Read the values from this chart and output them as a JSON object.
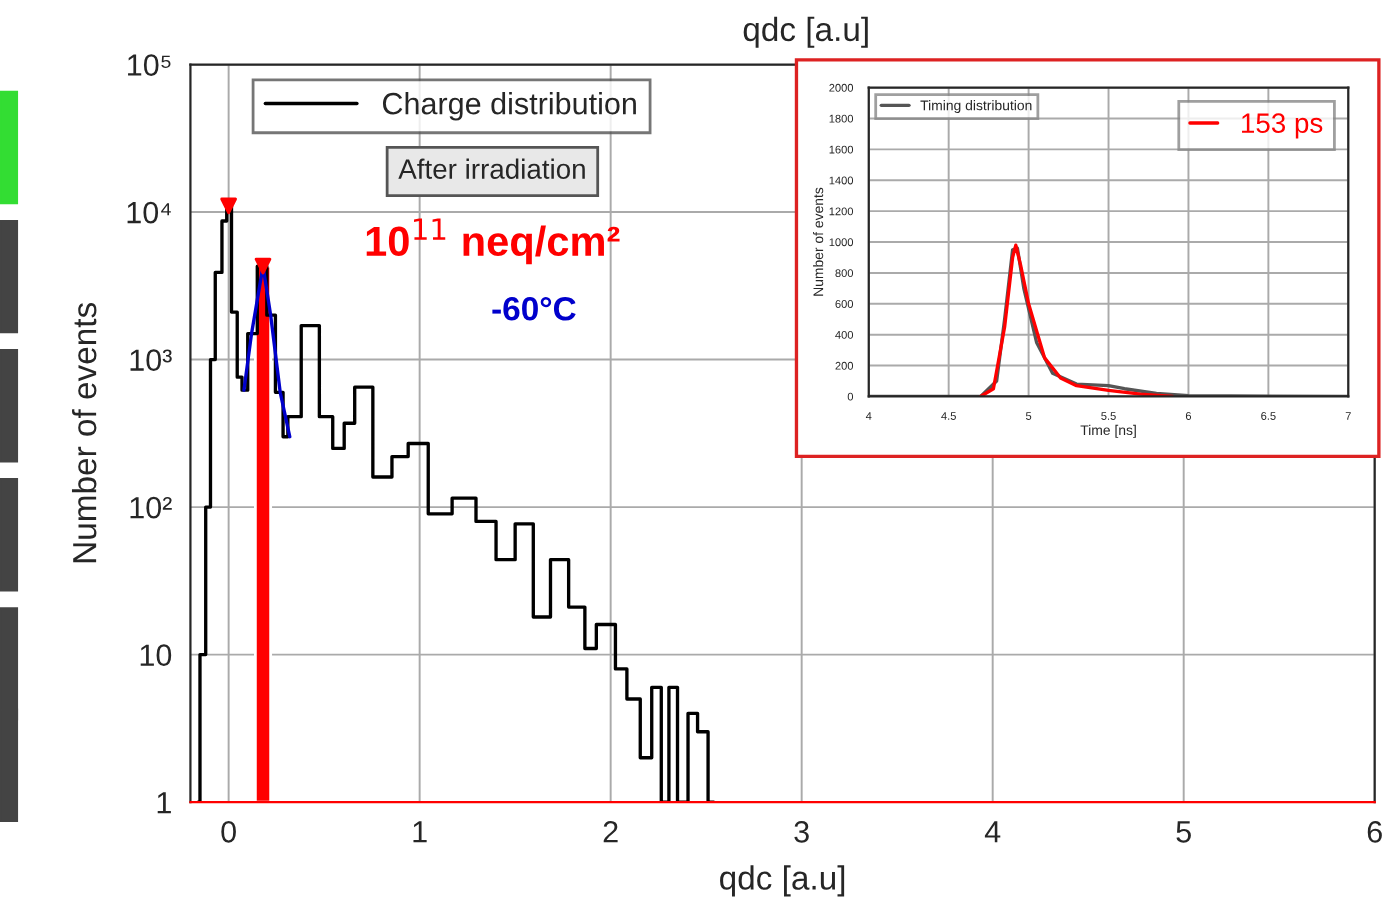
{
  "chart_data": [
    {
      "type": "step",
      "xlabel": "qdc [a.u]",
      "ylabel": "Number of events",
      "log": "y",
      "grid": true,
      "legend": "top",
      "xlim": [
        -0.2,
        6
      ],
      "xticks": [
        0,
        1,
        2,
        3,
        4,
        5,
        6
      ],
      "ylim": [
        1,
        100000
      ],
      "yticks": [
        1,
        10,
        {
          "value": 100,
          "label": "10²"
        },
        {
          "value": 1000,
          "label": "10³"
        },
        {
          "value": 10000,
          "label": "10⁴"
        },
        {
          "value": 100000,
          "label": "10⁵"
        }
      ],
      "annotations": [
        "qdc [a.u]",
        "After irradiation",
        "10$^{11}$ neq/cm²",
        "-60°C"
      ],
      "series": [
        {
          "name": "Charge distribution",
          "color": "#000000",
          "x": [
            -0.16,
            -0.14,
            -0.1,
            -0.09,
            -0.05,
            -0.02,
            0,
            0.03,
            0.06,
            0.08,
            0.12,
            0.18,
            0.22,
            0.27,
            0.3,
            0.32,
            0.44,
            0.51,
            0.58,
            0.63,
            0.69,
            0.82,
            0.89,
            0.99,
            1.1,
            1.24,
            1.35,
            1.45,
            1.55,
            1.64,
            1.73,
            1.83,
            1.9,
            1.95,
            2.0,
            2.05,
            2.12,
            2.19,
            2.24,
            2.29,
            2.32,
            2.38,
            2.43,
            2.48,
            2.54
          ],
          "values": [
            1,
            10,
            100,
            1000,
            3900,
            8700,
            11000,
            2100,
            760,
            620,
            1500,
            4300,
            2000,
            600,
            300,
            410,
            1700,
            410,
            250,
            370,
            650,
            160,
            220,
            270,
            90,
            115,
            80,
            44,
            77,
            18,
            44,
            21,
            11,
            16,
            16,
            8,
            5,
            2,
            6,
            1,
            6,
            1,
            4,
            3,
            1
          ]
        },
        {
          "type": "line",
          "color": "#0000cc",
          "x": [
            0.08,
            0.12,
            0.18,
            0.22,
            0.27,
            0.32
          ],
          "values": [
            620,
            1500,
            4300,
            2000,
            600,
            300
          ]
        },
        {
          "type": "bar",
          "color": "#ff0000",
          "x": [
            0.18
          ],
          "values": [
            4300
          ]
        },
        {
          "type": "scatter",
          "marker": "triangle",
          "color": "#ff0000",
          "x": [
            0,
            0.18
          ],
          "values": [
            11000,
            4300
          ]
        }
      ]
    },
    {
      "type": "line",
      "xlabel": "Time [ns]",
      "ylabel": "Number of events",
      "grid": true,
      "legend": "top",
      "xlim": [
        4,
        7
      ],
      "xticks": [
        4,
        4.5,
        5,
        5.5,
        6,
        6.5,
        7
      ],
      "ylim": [
        0,
        2000
      ],
      "yticks": [
        0,
        200,
        400,
        600,
        800,
        1000,
        1200,
        1400,
        1600,
        1800,
        2000
      ],
      "series": [
        {
          "name": "Timing distribution",
          "color": "#555555",
          "x": [
            4,
            4.7,
            4.8,
            4.85,
            4.9,
            4.93,
            4.97,
            5.05,
            5.15,
            5.3,
            5.5,
            5.6,
            5.8,
            6,
            7
          ],
          "values": [
            0,
            0,
            100,
            500,
            950,
            960,
            700,
            350,
            150,
            80,
            70,
            50,
            20,
            5,
            0
          ]
        },
        {
          "name": "153 ps",
          "color": "#ff0000",
          "x": [
            4.7,
            4.78,
            4.85,
            4.9,
            4.92,
            4.95,
            5.0,
            5.1,
            5.2,
            5.3,
            5.5,
            5.7,
            5.9
          ],
          "values": [
            0,
            50,
            450,
            900,
            980,
            850,
            600,
            250,
            120,
            70,
            40,
            15,
            0
          ]
        }
      ]
    }
  ]
}
